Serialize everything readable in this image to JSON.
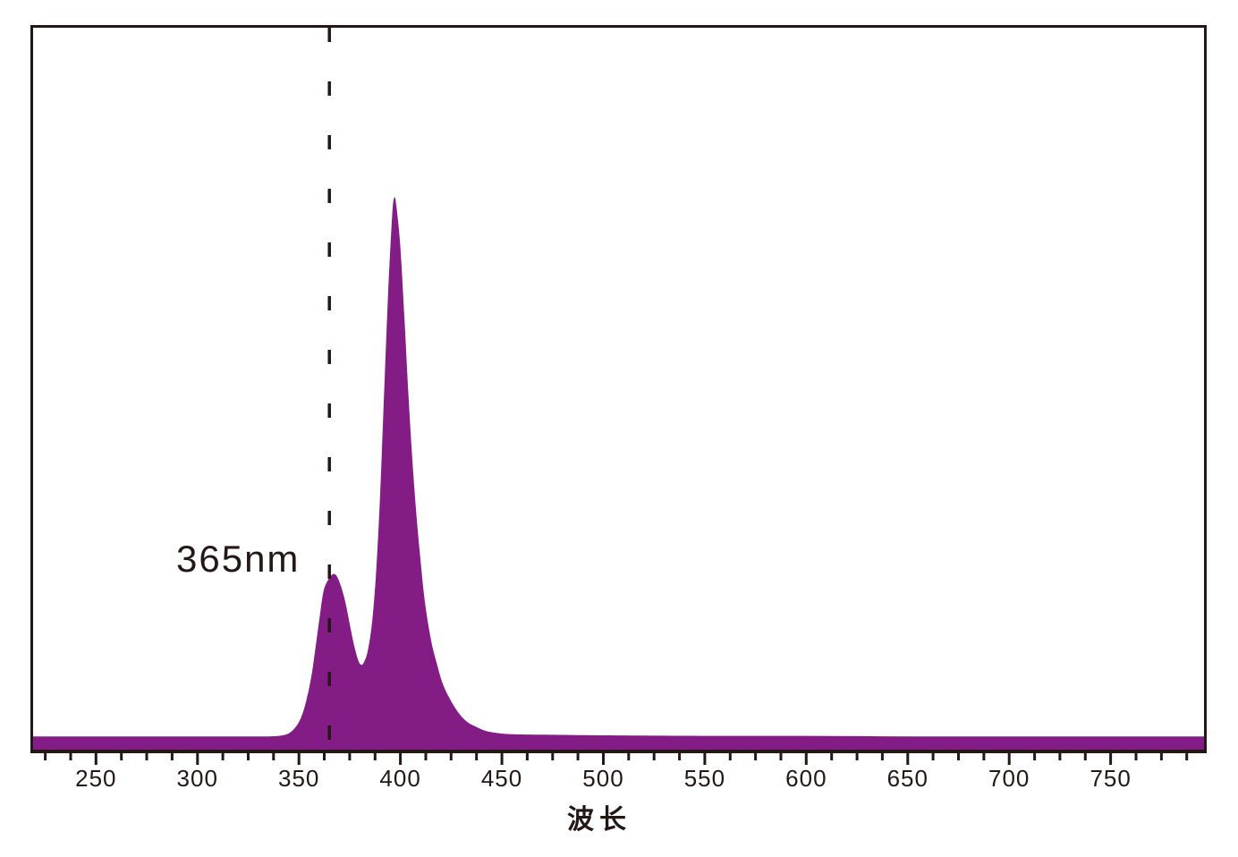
{
  "page": {
    "background": "#ffffff"
  },
  "colors": {
    "spectrum_fill": "#841C86",
    "axis": "#231815",
    "text": "#231815",
    "marker_line": "#231815"
  },
  "chart_data": {
    "type": "area",
    "title": "",
    "xlabel": "波长",
    "ylabel": "",
    "x_range": [
      219,
      796
    ],
    "x_major_ticks": [
      250,
      300,
      350,
      400,
      450,
      500,
      550,
      600,
      650,
      700,
      750
    ],
    "x_minor_tick_step_nm": 12.5,
    "x_minor_tick_start_nm": 225,
    "x_minor_tick_end_nm": 787.5,
    "grid": "off",
    "legend": "none",
    "marker_line_nm": 365,
    "annotation": {
      "text": "365nm",
      "at_nm": 365
    },
    "peaks": [
      {
        "nm": 367,
        "relative_intensity": 0.32
      },
      {
        "nm": 397,
        "relative_intensity": 1.0
      }
    ],
    "series": [
      {
        "name": "emission-spectrum",
        "points": [
          [
            219,
            0.024
          ],
          [
            240,
            0.024
          ],
          [
            260,
            0.024
          ],
          [
            280,
            0.024
          ],
          [
            300,
            0.024
          ],
          [
            320,
            0.024
          ],
          [
            335,
            0.024
          ],
          [
            342,
            0.026
          ],
          [
            346,
            0.032
          ],
          [
            350,
            0.05
          ],
          [
            353,
            0.08
          ],
          [
            356,
            0.13
          ],
          [
            358,
            0.18
          ],
          [
            360,
            0.235
          ],
          [
            362,
            0.285
          ],
          [
            364,
            0.305
          ],
          [
            366,
            0.316
          ],
          [
            367.5,
            0.318
          ],
          [
            369,
            0.312
          ],
          [
            371,
            0.293
          ],
          [
            373,
            0.265
          ],
          [
            375,
            0.228
          ],
          [
            377,
            0.192
          ],
          [
            379,
            0.164
          ],
          [
            380.5,
            0.154
          ],
          [
            382,
            0.158
          ],
          [
            384,
            0.18
          ],
          [
            386,
            0.23
          ],
          [
            388,
            0.32
          ],
          [
            390,
            0.46
          ],
          [
            392,
            0.65
          ],
          [
            394,
            0.83
          ],
          [
            396,
            0.97
          ],
          [
            397,
            1.0
          ],
          [
            398,
            0.985
          ],
          [
            400,
            0.91
          ],
          [
            402,
            0.78
          ],
          [
            404,
            0.64
          ],
          [
            406,
            0.52
          ],
          [
            408,
            0.42
          ],
          [
            410,
            0.34
          ],
          [
            412,
            0.27
          ],
          [
            415,
            0.2
          ],
          [
            418,
            0.155
          ],
          [
            421,
            0.118
          ],
          [
            425,
            0.088
          ],
          [
            429,
            0.065
          ],
          [
            433,
            0.05
          ],
          [
            437,
            0.042
          ],
          [
            442,
            0.034
          ],
          [
            448,
            0.03
          ],
          [
            455,
            0.028
          ],
          [
            470,
            0.027
          ],
          [
            500,
            0.026
          ],
          [
            550,
            0.025
          ],
          [
            600,
            0.025
          ],
          [
            650,
            0.024
          ],
          [
            700,
            0.024
          ],
          [
            750,
            0.024
          ],
          [
            796,
            0.024
          ]
        ]
      }
    ]
  }
}
